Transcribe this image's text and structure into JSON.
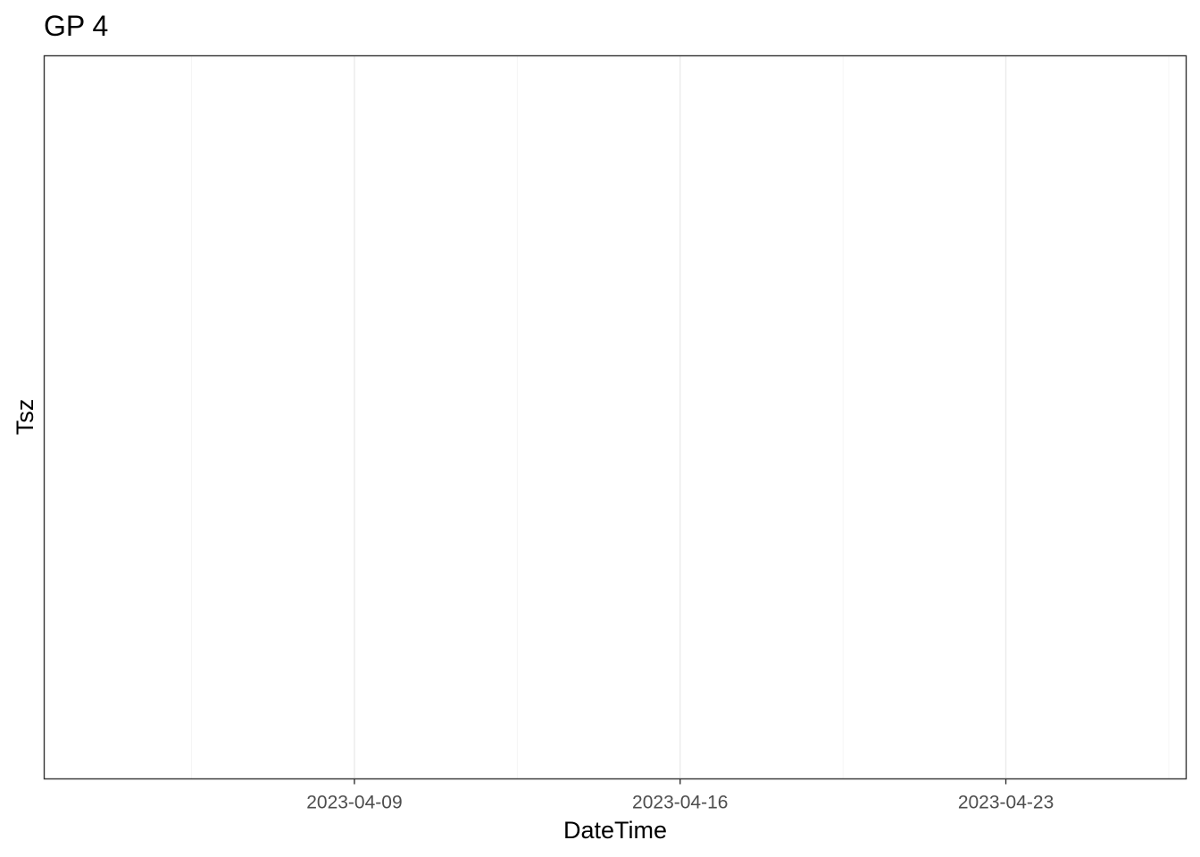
{
  "chart_data": {
    "type": "line",
    "title": "GP 4",
    "xlabel": "DateTime",
    "ylabel": "Tsz",
    "x_axis": {
      "scale": "date",
      "range": [
        "2023-04-02T08:00",
        "2023-04-26T21:00"
      ],
      "ticks": [
        {
          "value": "2023-04-09",
          "label": "2023-04-09"
        },
        {
          "value": "2023-04-16",
          "label": "2023-04-16"
        },
        {
          "value": "2023-04-23",
          "label": "2023-04-23"
        }
      ],
      "minor_ticks": [
        "2023-04-05T12:00",
        "2023-04-12T12:00",
        "2023-04-19T12:00",
        "2023-04-26T12:00"
      ]
    },
    "y_axis": {
      "ticks": []
    },
    "series": [],
    "grid": true,
    "legend": "none"
  },
  "colors": {
    "background": "#ffffff",
    "panel_border": "#333333",
    "grid_major": "#ebebeb",
    "grid_minor": "#f5f5f5",
    "tick": "#333333",
    "tick_label": "#4d4d4d",
    "text": "#000000"
  }
}
